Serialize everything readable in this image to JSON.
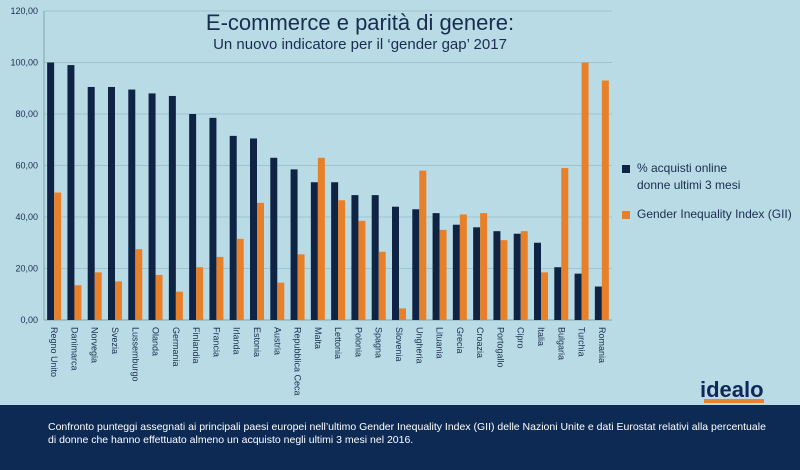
{
  "title": "E-commerce e parità di genere:",
  "subtitle": "Un nuovo indicatore per il ‘gender gap’ 2017",
  "logo": "idealo",
  "footer_text": "Confronto punteggi assegnati ai principali paesi europei nell’ultimo Gender Inequality Index (GII) delle Nazioni Unite e dati Eurostat relativi alla percentuale di donne che hanno effettuato almeno un acquisto negli ultimi 3 mesi nel 2016.",
  "colors": {
    "series1": "#0f2445",
    "series2": "#e8802a",
    "background": "#b8dbe5",
    "footer": "#0d2a55"
  },
  "chart_data": {
    "type": "bar",
    "title": "E-commerce e parità di genere:",
    "subtitle": "Un nuovo indicatore per il ‘gender gap’ 2017",
    "ylim": [
      0,
      120
    ],
    "yticks": [
      "0,00",
      "20,00",
      "40,00",
      "60,00",
      "80,00",
      "100,00",
      "120,00"
    ],
    "grid": true,
    "legend_position": "right",
    "categories": [
      "Regno Unito",
      "Danimarca",
      "Norvegia",
      "Svezia",
      "Lussemburgo",
      "Olanda",
      "Germania",
      "Finlandia",
      "Francia",
      "Irlanda",
      "Estonia",
      "Austria",
      "Repubblica Ceca",
      "Malta",
      "Lettonia",
      "Polonia",
      "Spagna",
      "Slovenia",
      "Ungheria",
      "Lituania",
      "Grecia",
      "Croazia",
      "Portogallo",
      "Cipro",
      "Italia",
      "Bulgaria",
      "Turchia",
      "Romania"
    ],
    "series": [
      {
        "name": "% acquisti online donne ultimi 3 mesi",
        "legend_lines": [
          "% acquisti online",
          "donne ultimi 3 mesi"
        ],
        "values": [
          100,
          99,
          90.5,
          90.5,
          89.5,
          88,
          87,
          80,
          78.5,
          71.5,
          70.5,
          63,
          58.5,
          53.5,
          53.5,
          48.5,
          48.5,
          44,
          43,
          41.5,
          37,
          36,
          34.5,
          33.5,
          30,
          20.5,
          18,
          13
        ]
      },
      {
        "name": "Gender Inequality Index (GII)",
        "legend_lines": [
          "Gender Inequality Index (GII)"
        ],
        "values": [
          49.5,
          13.5,
          18.5,
          15,
          27.5,
          17.5,
          11,
          20.5,
          24.5,
          31.5,
          45.5,
          14.5,
          25.5,
          63,
          46.5,
          38.5,
          26.5,
          4.5,
          58,
          35,
          41,
          41.5,
          31,
          34.5,
          18.5,
          59,
          100,
          93
        ]
      }
    ]
  }
}
